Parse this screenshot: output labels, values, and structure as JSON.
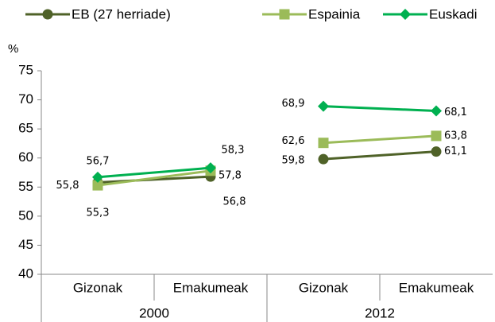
{
  "chart_data": {
    "type": "line",
    "y_label": "%",
    "groups": [
      {
        "name": "2000",
        "categories": [
          "Gizonak",
          "Emakumeak"
        ]
      },
      {
        "name": "2012",
        "categories": [
          "Gizonak",
          "Emakumeak"
        ]
      }
    ],
    "series": [
      {
        "name": "EB (27 herriade)",
        "color": "#4f6228",
        "marker": "circle",
        "values": [
          55.8,
          56.8,
          59.8,
          61.1
        ],
        "value_labels": [
          "55,8",
          "56,8",
          "59,8",
          "61,1"
        ]
      },
      {
        "name": "Espainia",
        "color": "#9bbb59",
        "marker": "square",
        "values": [
          55.3,
          57.8,
          62.6,
          63.8
        ],
        "value_labels": [
          "55,3",
          "57,8",
          "62,6",
          "63,8"
        ]
      },
      {
        "name": "Euskadi",
        "color": "#00b050",
        "marker": "diamond",
        "values": [
          56.7,
          58.3,
          68.9,
          68.1
        ],
        "value_labels": [
          "56,7",
          "58,3",
          "68,9",
          "68,1"
        ]
      }
    ],
    "ylim": [
      40,
      75
    ],
    "yticks": [
      40,
      45,
      50,
      55,
      60,
      65,
      70,
      75
    ],
    "grid": false,
    "legend": "top"
  }
}
